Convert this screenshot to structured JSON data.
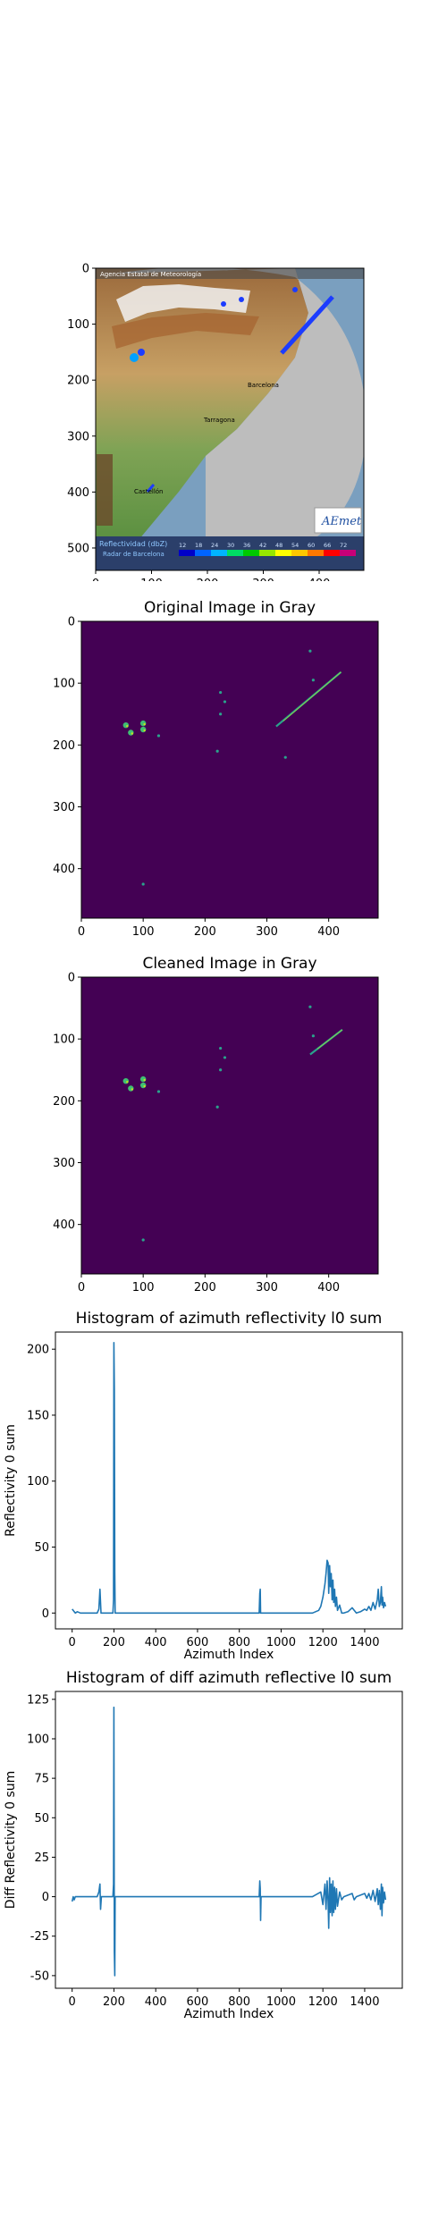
{
  "map_panel": {
    "header": "Agencia Estatal de Meteorología",
    "legend_title": "Reflectividad (dbZ)",
    "legend_values": [
      "12",
      "18",
      "24",
      "30",
      "36",
      "42",
      "48",
      "54",
      "60",
      "66",
      "72"
    ],
    "legend_colors": [
      "#0000c8",
      "#0064ff",
      "#00b4ff",
      "#00dc64",
      "#00c800",
      "#96e600",
      "#ffff00",
      "#ffc800",
      "#ff7800",
      "#ff0000",
      "#c80078"
    ],
    "radar_name": "Radar de Barcelona",
    "logo_text": "AEmet",
    "city_labels": [
      "Barcelona",
      "Tarragona",
      "Castellón"
    ],
    "xticks": [
      "0",
      "100",
      "200",
      "300",
      "400"
    ],
    "yticks": [
      "0",
      "100",
      "200",
      "300",
      "400",
      "500"
    ]
  },
  "chart_data": [
    {
      "type": "heatmap",
      "title": "Original Image in Gray",
      "xticks": [
        "0",
        "100",
        "200",
        "300",
        "400"
      ],
      "yticks": [
        "0",
        "100",
        "200",
        "300",
        "400"
      ],
      "xlim": [
        0,
        480
      ],
      "ylim": [
        480,
        0
      ],
      "background_color": "#440154",
      "streak_start": [
        315,
        170
      ],
      "streak_end": [
        420,
        82
      ],
      "clusters": [
        [
          72,
          168
        ],
        [
          80,
          180
        ],
        [
          100,
          165
        ],
        [
          100,
          175
        ],
        [
          220,
          210
        ],
        [
          225,
          115
        ],
        [
          225,
          150
        ],
        [
          232,
          130
        ],
        [
          125,
          185
        ],
        [
          375,
          95
        ],
        [
          370,
          48
        ],
        [
          330,
          220
        ],
        [
          100,
          425
        ]
      ]
    },
    {
      "type": "heatmap",
      "title": "Cleaned Image in Gray",
      "xticks": [
        "0",
        "100",
        "200",
        "300",
        "400"
      ],
      "yticks": [
        "0",
        "100",
        "200",
        "300",
        "400"
      ],
      "xlim": [
        0,
        480
      ],
      "ylim": [
        480,
        0
      ],
      "background_color": "#440154",
      "streak_start": [
        370,
        125
      ],
      "streak_end": [
        422,
        85
      ],
      "clusters": [
        [
          72,
          168
        ],
        [
          80,
          180
        ],
        [
          100,
          165
        ],
        [
          100,
          175
        ],
        [
          220,
          210
        ],
        [
          225,
          115
        ],
        [
          225,
          150
        ],
        [
          232,
          130
        ],
        [
          125,
          185
        ],
        [
          375,
          95
        ],
        [
          370,
          48
        ],
        [
          100,
          425
        ]
      ]
    },
    {
      "type": "line",
      "title": "Histogram of azimuth reflectivity l0 sum",
      "xlabel": "Azimuth Index",
      "ylabel": "Reflectivity 0 sum",
      "xlim": [
        -80,
        1580
      ],
      "ylim": [
        -12,
        213
      ],
      "xticks": [
        0,
        200,
        400,
        600,
        800,
        1000,
        1200,
        1400
      ],
      "yticks": [
        0,
        50,
        100,
        150,
        200
      ],
      "color": "#1f77b4",
      "points": [
        [
          0,
          3
        ],
        [
          5,
          2
        ],
        [
          10,
          1
        ],
        [
          15,
          0
        ],
        [
          25,
          1
        ],
        [
          40,
          0
        ],
        [
          60,
          0
        ],
        [
          120,
          0
        ],
        [
          128,
          3
        ],
        [
          133,
          18
        ],
        [
          138,
          0
        ],
        [
          150,
          0
        ],
        [
          195,
          0
        ],
        [
          198,
          10
        ],
        [
          200,
          205
        ],
        [
          202,
          170
        ],
        [
          204,
          30
        ],
        [
          206,
          0
        ],
        [
          250,
          0
        ],
        [
          600,
          0
        ],
        [
          895,
          0
        ],
        [
          898,
          15
        ],
        [
          900,
          18
        ],
        [
          902,
          0
        ],
        [
          1000,
          0
        ],
        [
          1150,
          0
        ],
        [
          1180,
          2
        ],
        [
          1190,
          5
        ],
        [
          1200,
          12
        ],
        [
          1210,
          22
        ],
        [
          1215,
          30
        ],
        [
          1220,
          40
        ],
        [
          1225,
          38
        ],
        [
          1228,
          15
        ],
        [
          1232,
          36
        ],
        [
          1236,
          20
        ],
        [
          1240,
          30
        ],
        [
          1244,
          10
        ],
        [
          1248,
          25
        ],
        [
          1252,
          8
        ],
        [
          1256,
          18
        ],
        [
          1260,
          5
        ],
        [
          1265,
          12
        ],
        [
          1270,
          2
        ],
        [
          1280,
          6
        ],
        [
          1290,
          0
        ],
        [
          1300,
          0
        ],
        [
          1320,
          1
        ],
        [
          1340,
          4
        ],
        [
          1350,
          2
        ],
        [
          1360,
          0
        ],
        [
          1380,
          1
        ],
        [
          1400,
          3
        ],
        [
          1410,
          2
        ],
        [
          1420,
          5
        ],
        [
          1430,
          2
        ],
        [
          1440,
          8
        ],
        [
          1450,
          3
        ],
        [
          1460,
          10
        ],
        [
          1465,
          18
        ],
        [
          1470,
          5
        ],
        [
          1475,
          8
        ],
        [
          1480,
          20
        ],
        [
          1483,
          6
        ],
        [
          1486,
          12
        ],
        [
          1490,
          4
        ],
        [
          1495,
          8
        ],
        [
          1500,
          5
        ]
      ]
    },
    {
      "type": "line",
      "title": "Histogram of diff azimuth reflective l0 sum",
      "xlabel": "Azimuth Index",
      "ylabel": "Diff Reflectivity 0 sum",
      "xlim": [
        -80,
        1580
      ],
      "ylim": [
        -58,
        130
      ],
      "xticks": [
        0,
        200,
        400,
        600,
        800,
        1000,
        1200,
        1400
      ],
      "yticks": [
        -50,
        -25,
        0,
        25,
        50,
        75,
        100,
        125
      ],
      "color": "#1f77b4",
      "points": [
        [
          0,
          -3
        ],
        [
          5,
          0
        ],
        [
          10,
          -2
        ],
        [
          15,
          0
        ],
        [
          40,
          0
        ],
        [
          120,
          0
        ],
        [
          128,
          3
        ],
        [
          133,
          8
        ],
        [
          136,
          -8
        ],
        [
          140,
          0
        ],
        [
          195,
          0
        ],
        [
          198,
          8
        ],
        [
          200,
          120
        ],
        [
          202,
          -35
        ],
        [
          204,
          -50
        ],
        [
          206,
          0
        ],
        [
          250,
          0
        ],
        [
          895,
          0
        ],
        [
          898,
          10
        ],
        [
          900,
          5
        ],
        [
          902,
          -15
        ],
        [
          904,
          0
        ],
        [
          1150,
          0
        ],
        [
          1190,
          3
        ],
        [
          1200,
          -5
        ],
        [
          1210,
          8
        ],
        [
          1215,
          -8
        ],
        [
          1220,
          10
        ],
        [
          1225,
          -3
        ],
        [
          1228,
          -20
        ],
        [
          1232,
          12
        ],
        [
          1236,
          -10
        ],
        [
          1240,
          8
        ],
        [
          1244,
          -12
        ],
        [
          1248,
          10
        ],
        [
          1252,
          -10
        ],
        [
          1256,
          6
        ],
        [
          1260,
          -8
        ],
        [
          1265,
          5
        ],
        [
          1270,
          -6
        ],
        [
          1280,
          3
        ],
        [
          1290,
          -2
        ],
        [
          1300,
          0
        ],
        [
          1340,
          2
        ],
        [
          1350,
          -2
        ],
        [
          1360,
          0
        ],
        [
          1400,
          2
        ],
        [
          1410,
          -1
        ],
        [
          1420,
          2
        ],
        [
          1430,
          -2
        ],
        [
          1440,
          4
        ],
        [
          1450,
          -3
        ],
        [
          1460,
          5
        ],
        [
          1465,
          -5
        ],
        [
          1470,
          4
        ],
        [
          1475,
          -8
        ],
        [
          1480,
          8
        ],
        [
          1483,
          -12
        ],
        [
          1486,
          6
        ],
        [
          1490,
          -4
        ],
        [
          1495,
          3
        ],
        [
          1500,
          -2
        ]
      ]
    }
  ]
}
